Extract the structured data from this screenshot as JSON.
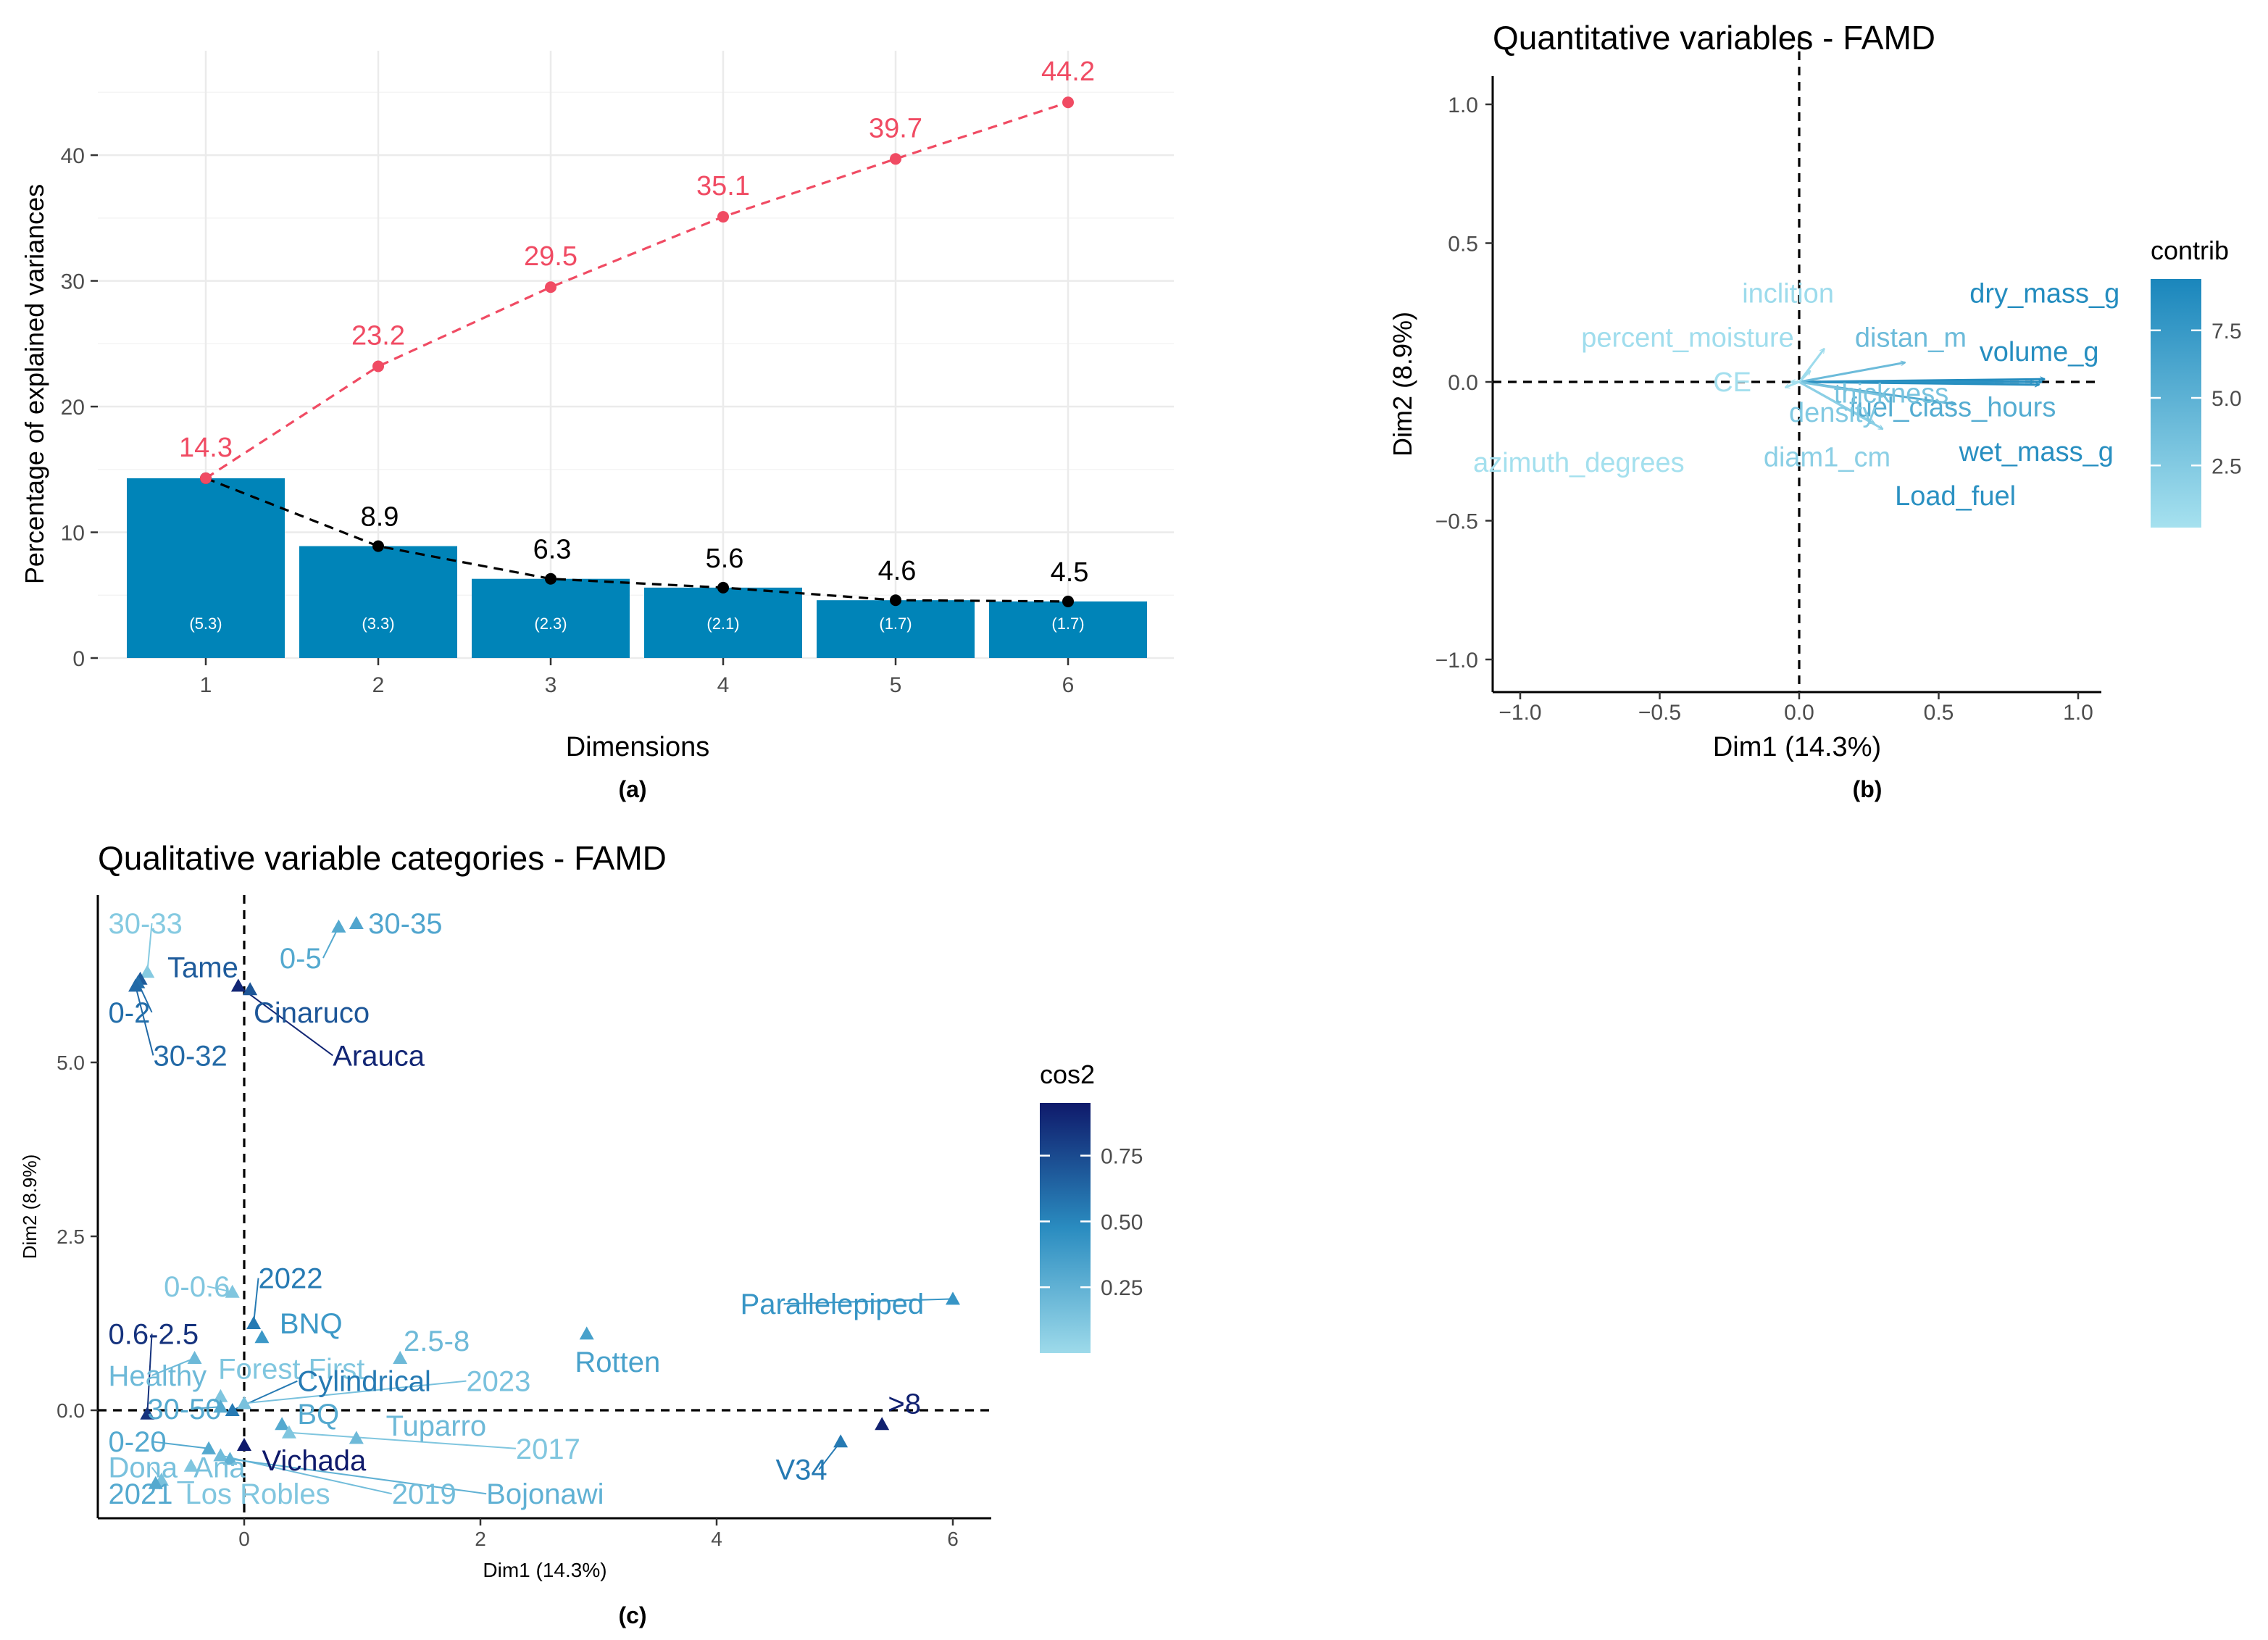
{
  "chart_data": [
    {
      "type": "bar",
      "panel": "(a)",
      "title": "",
      "xlabel": "Dimensions",
      "ylabel": "Percentage of explained variances",
      "categories": [
        "1",
        "2",
        "3",
        "4",
        "5",
        "6"
      ],
      "values": [
        14.3,
        8.9,
        6.3,
        5.6,
        4.6,
        4.5
      ],
      "value_labels": [
        "14.3",
        "8.9",
        "6.3",
        "5.6",
        "4.6",
        "4.5"
      ],
      "eigen_labels": [
        "(5.3)",
        "(3.3)",
        "(2.3)",
        "(2.1)",
        "(1.7)",
        "(1.7)"
      ],
      "cumulative": [
        14.3,
        23.2,
        29.5,
        35.1,
        39.7,
        44.2
      ],
      "cumulative_labels": [
        "14.3",
        "23.2",
        "29.5",
        "35.1",
        "39.7",
        "44.2"
      ],
      "yticks": [
        "0",
        "10",
        "20",
        "30",
        "40"
      ],
      "ytick_values": [
        0,
        10,
        20,
        30,
        40
      ],
      "ylim": [
        0,
        46
      ],
      "colors": {
        "bar": "#0084b8",
        "cumulative": "#f04b63",
        "line": "#000000",
        "grid": "#ebebeb"
      }
    },
    {
      "type": "scatter",
      "panel": "(b)",
      "title": "Quantitative variables - FAMD",
      "xlabel": "Dim1 (14.3%)",
      "ylabel": "Dim2 (8.9%)",
      "xlim": [
        -1.1,
        1.1
      ],
      "ylim": [
        -1.1,
        1.1
      ],
      "xticks": [
        "-1.0",
        "-0.5",
        "0.0",
        "0.5",
        "1.0"
      ],
      "xtick_values": [
        -1.0,
        -0.5,
        0.0,
        0.5,
        1.0
      ],
      "yticks": [
        "-1.0",
        "-0.5",
        "0.0",
        "0.5",
        "1.0"
      ],
      "ytick_values": [
        -1.0,
        -0.5,
        0.0,
        0.5,
        1.0
      ],
      "legend_title": "contrib",
      "legend_ticks": [
        "2.5",
        "5.0",
        "7.5"
      ],
      "legend_tick_values": [
        2.5,
        5.0,
        7.5
      ],
      "legend_range": [
        0.2,
        9.4
      ],
      "vectors": [
        {
          "name": "dry_mass_g",
          "x": 0.88,
          "y": 0.01,
          "contrib": 8.8,
          "lx": 0.88,
          "ly": 0.32
        },
        {
          "name": "volume_g",
          "x": 0.86,
          "y": -0.01,
          "contrib": 8.6,
          "lx": 0.86,
          "ly": 0.11
        },
        {
          "name": "wet_mass_g",
          "x": 0.87,
          "y": 0.0,
          "contrib": 8.5,
          "lx": 0.85,
          "ly": -0.25
        },
        {
          "name": "Load_fuel",
          "x": 0.84,
          "y": 0.0,
          "contrib": 8.3,
          "lx": 0.56,
          "ly": -0.41
        },
        {
          "name": "fuel_class_hours",
          "x": 0.56,
          "y": -0.08,
          "contrib": 5.6,
          "lx": 0.55,
          "ly": -0.09
        },
        {
          "name": "distan_m",
          "x": 0.38,
          "y": 0.07,
          "contrib": 4.0,
          "lx": 0.4,
          "ly": 0.16
        },
        {
          "name": "thickness",
          "x": 0.31,
          "y": -0.05,
          "contrib": 3.2,
          "lx": 0.33,
          "ly": -0.04
        },
        {
          "name": "density",
          "x": 0.27,
          "y": -0.15,
          "contrib": 2.6,
          "lx": 0.12,
          "ly": -0.11
        },
        {
          "name": "diam1_cm",
          "x": 0.3,
          "y": -0.17,
          "contrib": 2.0,
          "lx": 0.1,
          "ly": -0.27
        },
        {
          "name": "inclition",
          "x": 0.09,
          "y": 0.12,
          "contrib": 0.8,
          "lx": -0.04,
          "ly": 0.32
        },
        {
          "name": "percent_moisture",
          "x": 0.04,
          "y": 0.04,
          "contrib": 0.6,
          "lx": -0.4,
          "ly": 0.16
        },
        {
          "name": "CE",
          "x": -0.03,
          "y": 0.0,
          "contrib": 0.4,
          "lx": -0.24,
          "ly": 0.0
        },
        {
          "name": "azimuth_degrees",
          "x": -0.05,
          "y": -0.02,
          "contrib": 0.3,
          "lx": -0.79,
          "ly": -0.29
        }
      ]
    },
    {
      "type": "scatter",
      "panel": "(c)",
      "title": "Qualitative variable categories - FAMD",
      "xlabel": "Dim1 (14.3%)",
      "ylabel": "Dim2 (8.9%)",
      "xlim": [
        -1.25,
        6.35
      ],
      "ylim": [
        -1.55,
        7.45
      ],
      "xticks": [
        "0",
        "2",
        "4",
        "6"
      ],
      "xtick_values": [
        0,
        2,
        4,
        6
      ],
      "yticks": [
        "0.0",
        "2.5",
        "5.0"
      ],
      "ytick_values": [
        0.0,
        2.5,
        5.0
      ],
      "legend_title": "cos2",
      "legend_ticks": [
        "0.25",
        "0.50",
        "0.75"
      ],
      "legend_tick_values": [
        0.25,
        0.5,
        0.75
      ],
      "legend_range": [
        0.0,
        0.95
      ],
      "points": [
        {
          "name": "30-33",
          "x": -0.82,
          "y": 6.3,
          "cos2": 0.1,
          "lx": -1.15,
          "ly": 7.0
        },
        {
          "name": "30-35",
          "x": 0.95,
          "y": 7.0,
          "cos2": 0.32,
          "lx": 1.05,
          "ly": 7.0
        },
        {
          "name": "0-5",
          "x": 0.8,
          "y": 6.95,
          "cos2": 0.3,
          "lx": 0.3,
          "ly": 6.5
        },
        {
          "name": "Tame",
          "x": -0.88,
          "y": 6.2,
          "cos2": 0.68,
          "lx": -0.65,
          "ly": 6.37
        },
        {
          "name": "0-2",
          "x": -0.9,
          "y": 6.15,
          "cos2": 0.6,
          "lx": -1.15,
          "ly": 5.72
        },
        {
          "name": "30-32",
          "x": -0.92,
          "y": 6.1,
          "cos2": 0.62,
          "lx": -0.77,
          "ly": 5.1
        },
        {
          "name": "Cinaruco",
          "x": 0.05,
          "y": 6.05,
          "cos2": 0.7,
          "lx": 0.08,
          "ly": 5.72
        },
        {
          "name": "Arauca",
          "x": -0.05,
          "y": 6.1,
          "cos2": 0.9,
          "lx": 0.75,
          "ly": 5.1
        },
        {
          "name": "0-0.6",
          "x": -0.1,
          "y": 1.7,
          "cos2": 0.12,
          "lx": -0.68,
          "ly": 1.78
        },
        {
          "name": "2022",
          "x": 0.08,
          "y": 1.25,
          "cos2": 0.55,
          "lx": 0.12,
          "ly": 1.9
        },
        {
          "name": "BNQ",
          "x": 0.15,
          "y": 1.05,
          "cos2": 0.4,
          "lx": 0.3,
          "ly": 1.25
        },
        {
          "name": "2.5-8",
          "x": 1.32,
          "y": 0.75,
          "cos2": 0.2,
          "lx": 1.35,
          "ly": 1.0
        },
        {
          "name": "Parallelepiped",
          "x": 6.0,
          "y": 1.6,
          "cos2": 0.42,
          "lx": 4.2,
          "ly": 1.53
        },
        {
          "name": "Rotten",
          "x": 2.9,
          "y": 1.1,
          "cos2": 0.35,
          "lx": 2.8,
          "ly": 0.7
        },
        {
          "name": "0.6-2.5",
          "x": -0.82,
          "y": -0.05,
          "cos2": 0.85,
          "lx": -1.15,
          "ly": 1.1
        },
        {
          "name": "Healthy",
          "x": -0.42,
          "y": 0.75,
          "cos2": 0.2,
          "lx": -1.15,
          "ly": 0.5
        },
        {
          "name": "Forest First",
          "x": -0.2,
          "y": 0.2,
          "cos2": 0.12,
          "lx": -0.22,
          "ly": 0.6
        },
        {
          "name": "Cylindrical",
          "x": -0.1,
          "y": 0.0,
          "cos2": 0.55,
          "lx": 0.45,
          "ly": 0.42
        },
        {
          "name": "2023",
          "x": 0.0,
          "y": 0.1,
          "cos2": 0.15,
          "lx": 1.88,
          "ly": 0.42
        },
        {
          "name": "30-50",
          "x": -0.2,
          "y": 0.05,
          "cos2": 0.3,
          "lx": -0.82,
          "ly": 0.02
        },
        {
          "name": ">8",
          "x": 5.4,
          "y": -0.2,
          "cos2": 0.92,
          "lx": 5.45,
          "ly": 0.1
        },
        {
          "name": "BQ",
          "x": 0.32,
          "y": -0.2,
          "cos2": 0.3,
          "lx": 0.45,
          "ly": -0.05
        },
        {
          "name": "Tuparro",
          "x": 0.95,
          "y": -0.4,
          "cos2": 0.2,
          "lx": 1.2,
          "ly": -0.22
        },
        {
          "name": "2017",
          "x": 0.38,
          "y": -0.32,
          "cos2": 0.12,
          "lx": 2.3,
          "ly": -0.55
        },
        {
          "name": "V34",
          "x": 5.05,
          "y": -0.45,
          "cos2": 0.55,
          "lx": 4.5,
          "ly": -0.85
        },
        {
          "name": "0-20",
          "x": -0.3,
          "y": -0.55,
          "cos2": 0.3,
          "lx": -1.15,
          "ly": -0.45
        },
        {
          "name": "Vichada",
          "x": 0.0,
          "y": -0.5,
          "cos2": 0.95,
          "lx": 0.15,
          "ly": -0.72
        },
        {
          "name": "Dona_Ana",
          "x": -0.7,
          "y": -1.0,
          "cos2": 0.15,
          "lx": -1.15,
          "ly": -0.82
        },
        {
          "name": "2021",
          "x": -0.75,
          "y": -1.05,
          "cos2": 0.3,
          "lx": -1.15,
          "ly": -1.2
        },
        {
          "name": "Los Robles",
          "x": -0.45,
          "y": -0.8,
          "cos2": 0.12,
          "lx": -0.5,
          "ly": -1.2
        },
        {
          "name": "2019",
          "x": -0.2,
          "y": -0.65,
          "cos2": 0.18,
          "lx": 1.25,
          "ly": -1.2
        },
        {
          "name": "Bojonawi",
          "x": -0.12,
          "y": -0.7,
          "cos2": 0.25,
          "lx": 2.05,
          "ly": -1.2
        }
      ]
    }
  ],
  "panel_labels": {
    "a": "(a)",
    "b": "(b)",
    "c": "(c)"
  }
}
